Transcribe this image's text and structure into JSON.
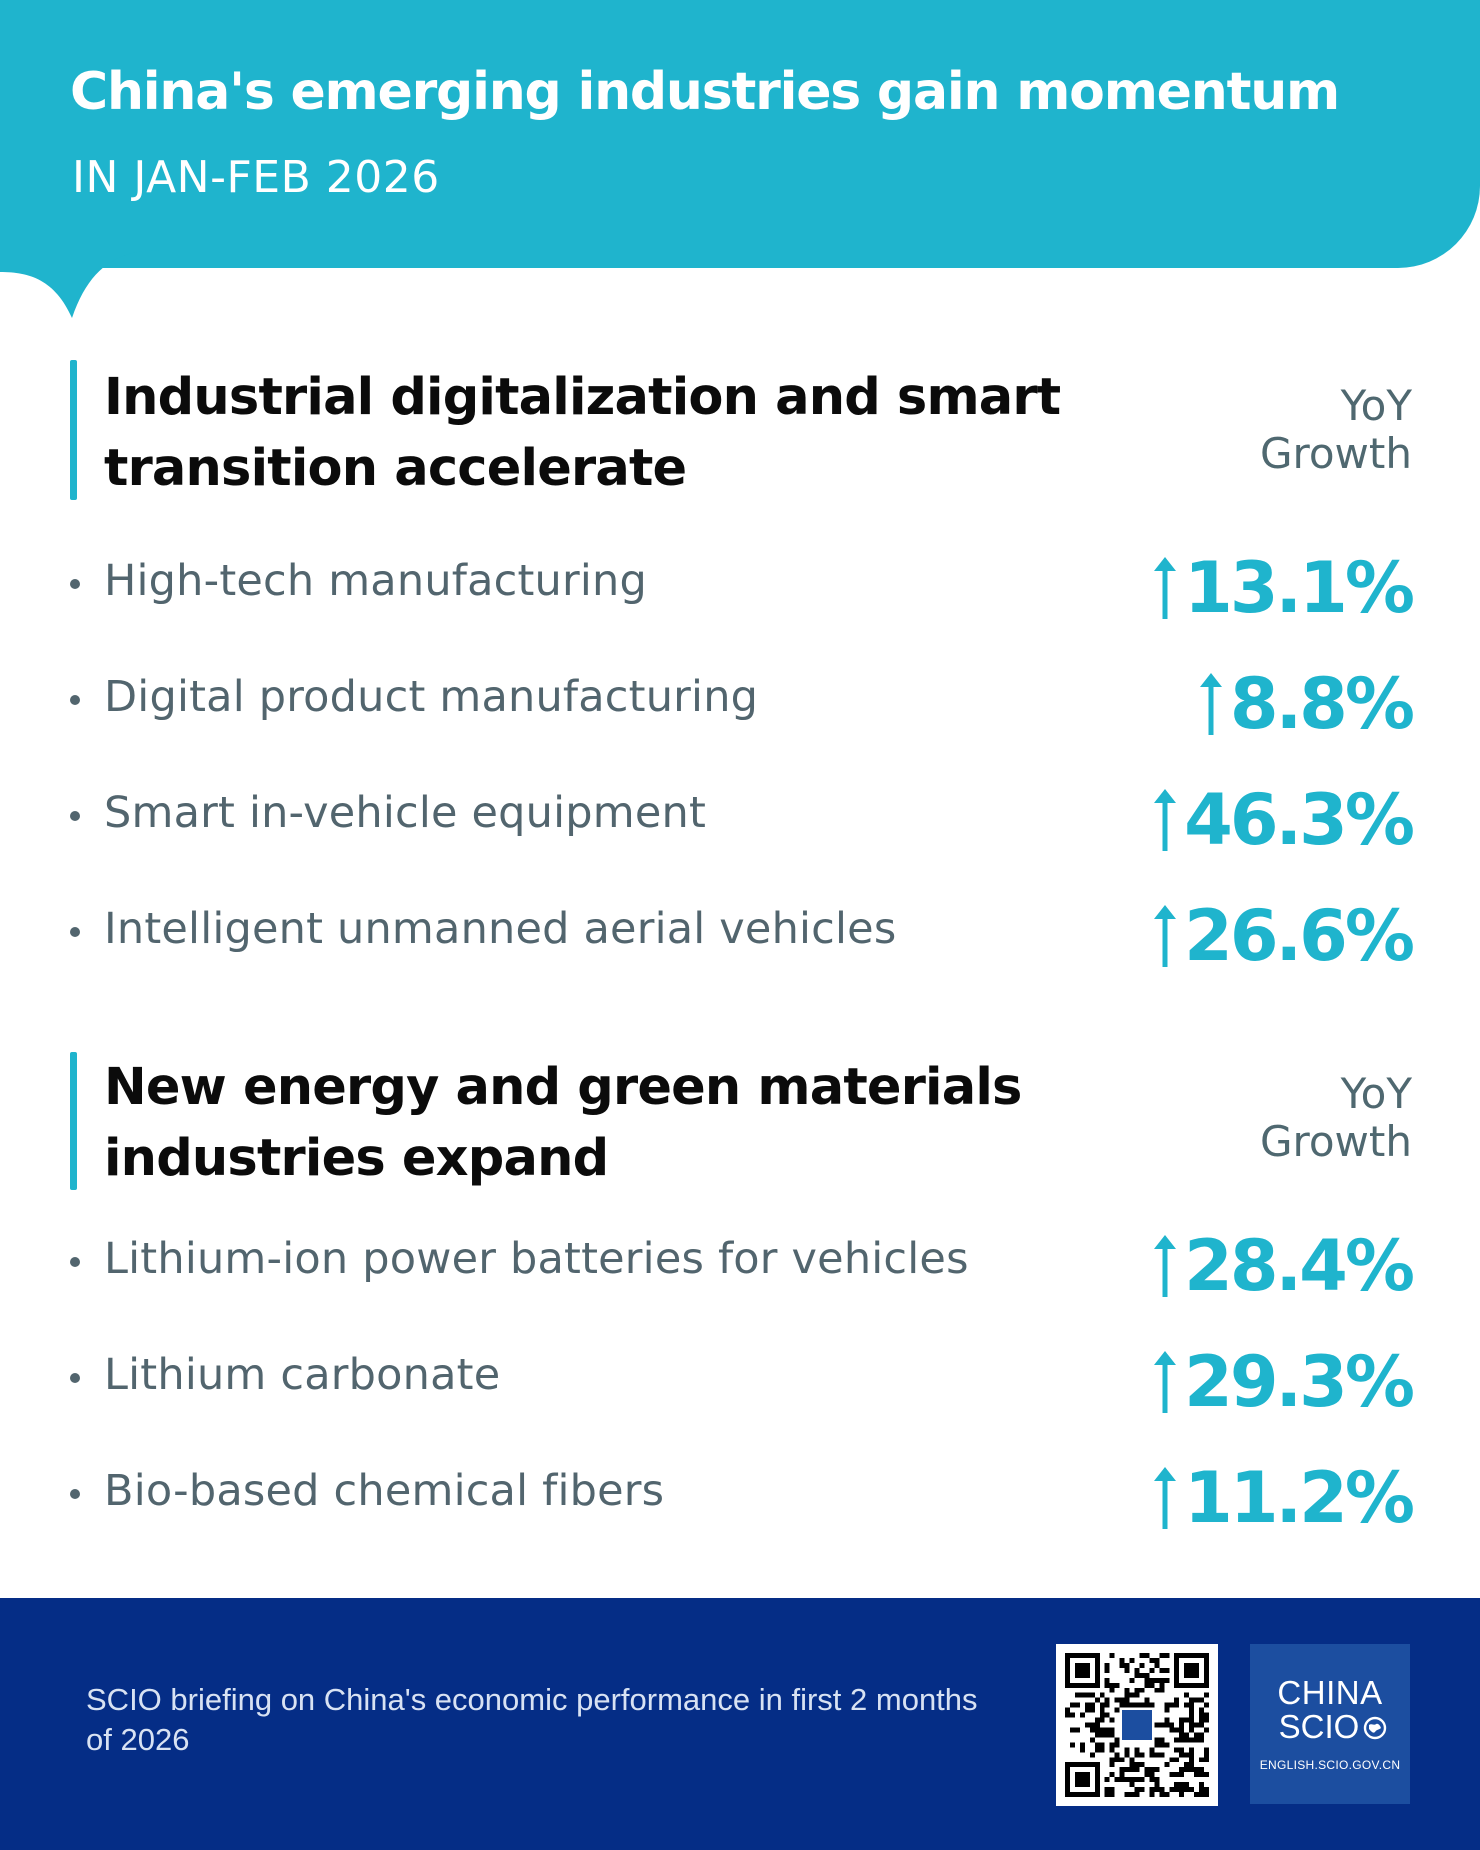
{
  "header": {
    "title": "China's emerging industries gain momentum",
    "subtitle": "IN JAN-FEB 2026"
  },
  "colors": {
    "accent": "#1fb4cd",
    "footer_bg": "#052d86",
    "text_gray": "#52656e"
  },
  "sections": [
    {
      "title": "Industrial digitalization and smart transition accelerate",
      "yoy_line1": "YoY",
      "yoy_line2": "Growth",
      "items": [
        {
          "label": "High-tech manufacturing",
          "value": "13.1%",
          "icon": "up-arrow-icon"
        },
        {
          "label": "Digital product manufacturing",
          "value": "8.8%",
          "icon": "up-arrow-icon"
        },
        {
          "label": "Smart in-vehicle equipment",
          "value": "46.3%",
          "icon": "up-arrow-icon"
        },
        {
          "label": "Intelligent unmanned aerial vehicles",
          "value": "26.6%",
          "icon": "up-arrow-icon"
        }
      ]
    },
    {
      "title": "New energy and green materials industries expand",
      "yoy_line1": "YoY",
      "yoy_line2": "Growth",
      "items": [
        {
          "label": "Lithium-ion power batteries for vehicles",
          "value": "28.4%",
          "icon": "up-arrow-icon"
        },
        {
          "label": "Lithium carbonate",
          "value": "29.3%",
          "icon": "up-arrow-icon"
        },
        {
          "label": "Bio-based chemical fibers",
          "value": "11.2%",
          "icon": "up-arrow-icon"
        }
      ]
    }
  ],
  "footer": {
    "source_text": "SCIO briefing on China's economic performance in first 2 months of 2026",
    "qr_icon": "qr-code-icon",
    "logo": {
      "line1": "CHINA",
      "line2": "SCIO",
      "url": "ENGLISH.SCIO.GOV.CN"
    }
  }
}
